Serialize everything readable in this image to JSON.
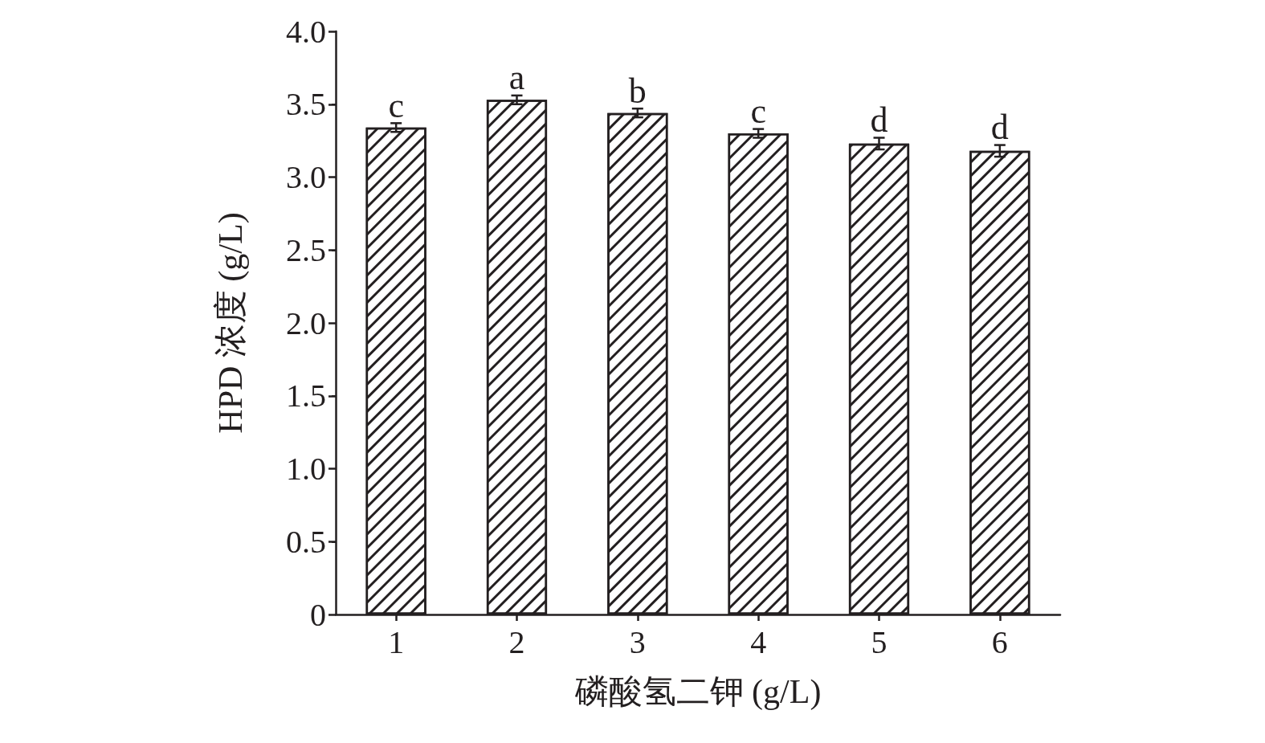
{
  "chart_data": {
    "type": "bar",
    "xlabel": "磷酸氢二钾 (g/L)",
    "ylabel": "HPD 浓度 (g/L)",
    "categories": [
      "1",
      "2",
      "3",
      "4",
      "5",
      "6"
    ],
    "series": [
      {
        "color": "#ffffff",
        "values": [
          3.34,
          3.53,
          3.44,
          3.3,
          3.23,
          3.18
        ],
        "errors": [
          0.03,
          0.03,
          0.03,
          0.03,
          0.04,
          0.04
        ]
      }
    ],
    "ylim": [
      0,
      4
    ],
    "yticks": [
      0,
      0.5,
      {
        "value": 1,
        "label": "1.0"
      },
      1.5,
      {
        "value": 2,
        "label": "2.0"
      },
      2.5,
      {
        "value": 3,
        "label": "3.0"
      },
      3.5,
      {
        "value": 4,
        "label": "4.0"
      }
    ],
    "annotations": [
      {
        "text": "c",
        "x": "1",
        "y": 3.37
      },
      {
        "text": "a",
        "x": "2",
        "y": 3.56
      },
      {
        "text": "b",
        "x": "3",
        "y": 3.47
      },
      {
        "text": "c",
        "x": "4",
        "y": 3.33
      },
      {
        "text": "d",
        "x": "5",
        "y": 3.27
      },
      {
        "text": "d",
        "x": "6",
        "y": 3.22
      }
    ]
  }
}
